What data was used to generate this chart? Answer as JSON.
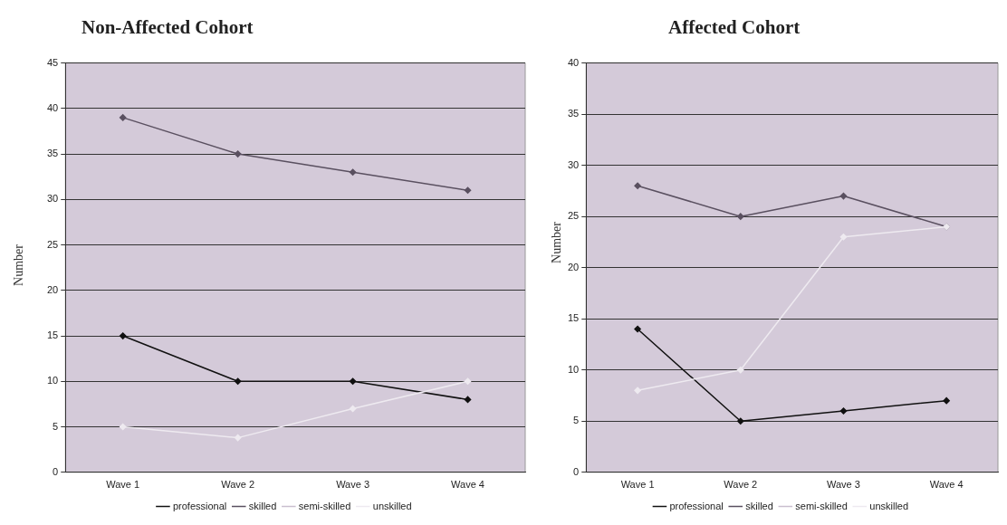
{
  "chart_data": [
    {
      "type": "line",
      "title": "Non-Affected Cohort",
      "ylabel": "Number",
      "categories": [
        "Wave 1",
        "Wave 2",
        "Wave 3",
        "Wave 4"
      ],
      "ylim": [
        0,
        45
      ],
      "yticks": [
        0,
        5,
        10,
        15,
        20,
        25,
        30,
        35,
        40,
        45
      ],
      "grid": "y",
      "legend": "bottom",
      "marker": "diamond",
      "series": [
        {
          "name": "professional",
          "color": "#111111",
          "values": [
            15,
            10,
            10,
            8
          ]
        },
        {
          "name": "skilled",
          "color": "#5a5060",
          "values": [
            39,
            35,
            33,
            31
          ]
        },
        {
          "name": "semi-skilled",
          "color": "#c9bfcf",
          "values": [
            null,
            null,
            null,
            null
          ]
        },
        {
          "name": "unskilled",
          "color": "#eeeaf0",
          "values": [
            5,
            3.8,
            7,
            10
          ]
        }
      ]
    },
    {
      "type": "line",
      "title": "Affected Cohort",
      "ylabel": "Number",
      "categories": [
        "Wave 1",
        "Wave 2",
        "Wave 3",
        "Wave 4"
      ],
      "ylim": [
        0,
        40
      ],
      "yticks": [
        0,
        5,
        10,
        15,
        20,
        25,
        30,
        35,
        40
      ],
      "grid": "y",
      "legend": "bottom",
      "marker": "diamond",
      "series": [
        {
          "name": "professional",
          "color": "#111111",
          "values": [
            14,
            5,
            6,
            7
          ]
        },
        {
          "name": "skilled",
          "color": "#5a5060",
          "values": [
            28,
            25,
            27,
            24
          ]
        },
        {
          "name": "semi-skilled",
          "color": "#c9bfcf",
          "values": [
            null,
            null,
            null,
            null
          ]
        },
        {
          "name": "unskilled",
          "color": "#eeeaf0",
          "values": [
            8,
            10,
            23,
            24
          ]
        }
      ]
    }
  ]
}
